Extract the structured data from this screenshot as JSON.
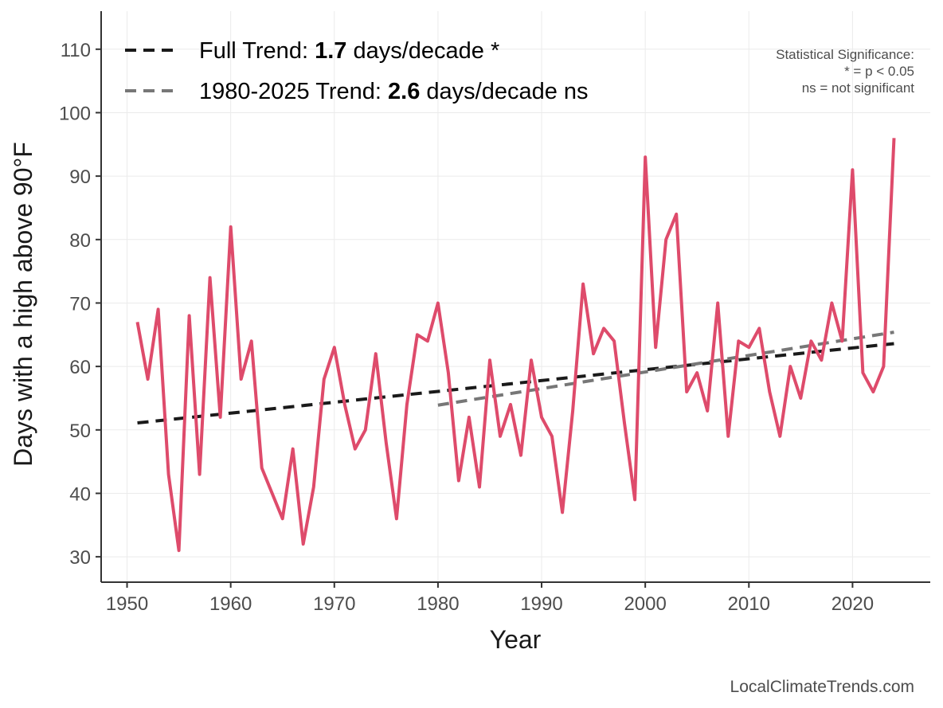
{
  "chart_data": {
    "type": "line",
    "xlabel": "Year",
    "ylabel": "Days with a high above 90°F",
    "xlim": [
      1947.5,
      2027.5
    ],
    "ylim": [
      26,
      116
    ],
    "x_ticks": [
      1950,
      1960,
      1970,
      1980,
      1990,
      2000,
      2010,
      2020
    ],
    "y_ticks": [
      30,
      40,
      50,
      60,
      70,
      80,
      90,
      100,
      110
    ],
    "grid": true,
    "series": [
      {
        "color": "#de4b6b",
        "x": [
          1951,
          1952,
          1953,
          1954,
          1955,
          1956,
          1957,
          1958,
          1959,
          1960,
          1961,
          1962,
          1963,
          1964,
          1965,
          1966,
          1967,
          1968,
          1969,
          1970,
          1971,
          1972,
          1973,
          1974,
          1975,
          1976,
          1977,
          1978,
          1979,
          1980,
          1981,
          1982,
          1983,
          1984,
          1985,
          1986,
          1987,
          1988,
          1989,
          1990,
          1991,
          1992,
          1993,
          1994,
          1995,
          1996,
          1997,
          1998,
          1999,
          2000,
          2001,
          2002,
          2003,
          2004,
          2005,
          2006,
          2007,
          2008,
          2009,
          2010,
          2011,
          2012,
          2013,
          2014,
          2015,
          2016,
          2017,
          2018,
          2019,
          2020,
          2021,
          2022,
          2023,
          2024
        ],
        "y": [
          67,
          58,
          69,
          43,
          31,
          68,
          43,
          74,
          52,
          82,
          58,
          64,
          44,
          40,
          36,
          47,
          32,
          41,
          58,
          63,
          54,
          47,
          50,
          62,
          48,
          36,
          54,
          65,
          64,
          70,
          59,
          42,
          52,
          41,
          61,
          49,
          54,
          46,
          61,
          52,
          49,
          37,
          53,
          73,
          62,
          66,
          64,
          51,
          39,
          93,
          63,
          80,
          84,
          56,
          59,
          53,
          70,
          49,
          64,
          63,
          66,
          56,
          49,
          60,
          55,
          64,
          61,
          70,
          64,
          91,
          59,
          56,
          60,
          96
        ]
      }
    ],
    "trend_lines": [
      {
        "color": "#1a1a1a",
        "x": [
          1951,
          2024
        ],
        "y": [
          51.1,
          63.6
        ],
        "dash": "dashed"
      },
      {
        "color": "#777777",
        "x": [
          1980,
          2024
        ],
        "y": [
          53.9,
          65.4
        ],
        "dash": "dashed"
      }
    ],
    "legend": {
      "placement": "top-left",
      "entries": [
        {
          "prefix": "Full Trend: ",
          "value": "1.7",
          "suffix": " days/decade *",
          "color": "#1a1a1a"
        },
        {
          "prefix": "1980-2025 Trend: ",
          "value": "2.6",
          "suffix": " days/decade ns",
          "color": "#777777"
        }
      ]
    },
    "annotation": {
      "placement": "top-right",
      "lines": [
        "Statistical Significance:",
        "* = p < 0.05",
        "ns = not significant"
      ]
    },
    "source": "LocalClimateTrends.com"
  }
}
